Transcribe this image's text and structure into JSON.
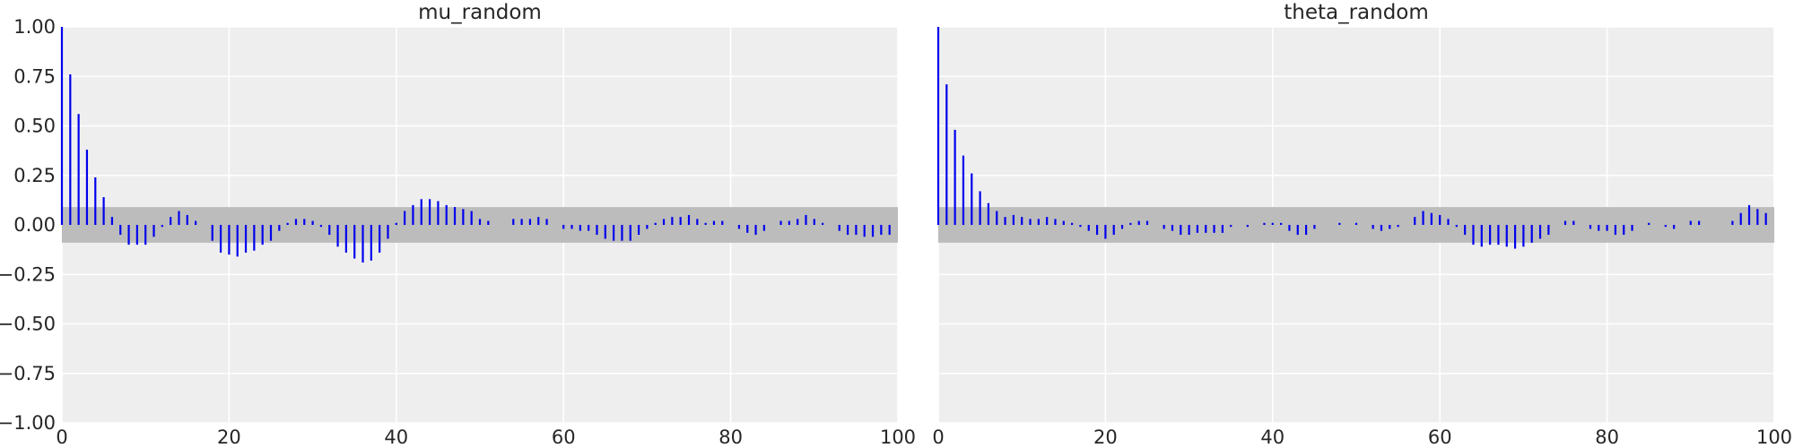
{
  "chart_data": [
    {
      "type": "bar",
      "title": "mu_random",
      "xlabel": "",
      "ylabel": "",
      "xlim": [
        0,
        100
      ],
      "ylim": [
        -1.0,
        1.0
      ],
      "xticks": [
        "0",
        "20",
        "40",
        "60",
        "80",
        "100"
      ],
      "yticks": [
        "−1.00",
        "−0.75",
        "−0.50",
        "−0.25",
        "0.00",
        "0.25",
        "0.50",
        "0.75",
        "1.00"
      ],
      "grid": true,
      "band": 0.09,
      "lags": [
        0,
        1,
        2,
        3,
        4,
        5,
        6,
        7,
        8,
        9,
        10,
        11,
        12,
        13,
        14,
        15,
        16,
        17,
        18,
        19,
        20,
        21,
        22,
        23,
        24,
        25,
        26,
        27,
        28,
        29,
        30,
        31,
        32,
        33,
        34,
        35,
        36,
        37,
        38,
        39,
        40,
        41,
        42,
        43,
        44,
        45,
        46,
        47,
        48,
        49,
        50,
        51,
        52,
        53,
        54,
        55,
        56,
        57,
        58,
        59,
        60,
        61,
        62,
        63,
        64,
        65,
        66,
        67,
        68,
        69,
        70,
        71,
        72,
        73,
        74,
        75,
        76,
        77,
        78,
        79,
        80,
        81,
        82,
        83,
        84,
        85,
        86,
        87,
        88,
        89,
        90,
        91,
        92,
        93,
        94,
        95,
        96,
        97,
        98,
        99
      ],
      "values": [
        1.0,
        0.76,
        0.56,
        0.38,
        0.24,
        0.14,
        0.04,
        -0.05,
        -0.1,
        -0.1,
        -0.1,
        -0.06,
        -0.01,
        0.04,
        0.07,
        0.05,
        0.02,
        0.0,
        -0.08,
        -0.14,
        -0.15,
        -0.16,
        -0.14,
        -0.13,
        -0.1,
        -0.08,
        -0.03,
        0.01,
        0.03,
        0.03,
        0.02,
        -0.01,
        -0.05,
        -0.11,
        -0.14,
        -0.17,
        -0.19,
        -0.18,
        -0.14,
        -0.07,
        0.01,
        0.07,
        0.1,
        0.13,
        0.13,
        0.12,
        0.1,
        0.09,
        0.08,
        0.07,
        0.03,
        0.02,
        0.0,
        0.0,
        0.03,
        0.03,
        0.03,
        0.04,
        0.03,
        0.0,
        -0.02,
        -0.02,
        -0.03,
        -0.03,
        -0.05,
        -0.07,
        -0.08,
        -0.08,
        -0.08,
        -0.05,
        -0.02,
        0.01,
        0.03,
        0.04,
        0.04,
        0.05,
        0.03,
        0.01,
        0.02,
        0.02,
        0.0,
        -0.02,
        -0.04,
        -0.05,
        -0.03,
        0.0,
        0.02,
        0.02,
        0.03,
        0.05,
        0.03,
        0.01,
        0.0,
        -0.03,
        -0.05,
        -0.05,
        -0.06,
        -0.06,
        -0.05,
        -0.05
      ]
    },
    {
      "type": "bar",
      "title": "theta_random",
      "xlabel": "",
      "ylabel": "",
      "xlim": [
        0,
        100
      ],
      "ylim": [
        -1.0,
        1.0
      ],
      "xticks": [
        "0",
        "20",
        "40",
        "60",
        "80",
        "100"
      ],
      "yticks": [],
      "grid": true,
      "band": 0.09,
      "lags": [
        0,
        1,
        2,
        3,
        4,
        5,
        6,
        7,
        8,
        9,
        10,
        11,
        12,
        13,
        14,
        15,
        16,
        17,
        18,
        19,
        20,
        21,
        22,
        23,
        24,
        25,
        26,
        27,
        28,
        29,
        30,
        31,
        32,
        33,
        34,
        35,
        36,
        37,
        38,
        39,
        40,
        41,
        42,
        43,
        44,
        45,
        46,
        47,
        48,
        49,
        50,
        51,
        52,
        53,
        54,
        55,
        56,
        57,
        58,
        59,
        60,
        61,
        62,
        63,
        64,
        65,
        66,
        67,
        68,
        69,
        70,
        71,
        72,
        73,
        74,
        75,
        76,
        77,
        78,
        79,
        80,
        81,
        82,
        83,
        84,
        85,
        86,
        87,
        88,
        89,
        90,
        91,
        92,
        93,
        94,
        95,
        96,
        97,
        98,
        99
      ],
      "values": [
        1.0,
        0.71,
        0.48,
        0.35,
        0.26,
        0.17,
        0.11,
        0.07,
        0.04,
        0.05,
        0.04,
        0.03,
        0.03,
        0.04,
        0.03,
        0.02,
        0.01,
        -0.01,
        -0.03,
        -0.05,
        -0.07,
        -0.05,
        -0.02,
        0.01,
        0.02,
        0.02,
        0.0,
        -0.02,
        -0.03,
        -0.05,
        -0.05,
        -0.04,
        -0.04,
        -0.04,
        -0.04,
        -0.01,
        0.0,
        -0.01,
        0.0,
        0.01,
        0.01,
        0.01,
        -0.03,
        -0.05,
        -0.05,
        -0.02,
        0.0,
        0.0,
        0.01,
        0.0,
        0.01,
        0.0,
        -0.02,
        -0.03,
        -0.02,
        -0.01,
        0.0,
        0.04,
        0.07,
        0.06,
        0.05,
        0.03,
        -0.01,
        -0.05,
        -0.1,
        -0.11,
        -0.1,
        -0.1,
        -0.11,
        -0.12,
        -0.11,
        -0.09,
        -0.07,
        -0.05,
        0.0,
        0.02,
        0.02,
        0.0,
        -0.02,
        -0.03,
        -0.03,
        -0.05,
        -0.05,
        -0.03,
        0.0,
        0.01,
        0.0,
        -0.01,
        -0.02,
        0.0,
        0.02,
        0.02,
        0.0,
        0.0,
        0.0,
        0.02,
        0.06,
        0.1,
        0.08,
        0.06
      ]
    }
  ]
}
